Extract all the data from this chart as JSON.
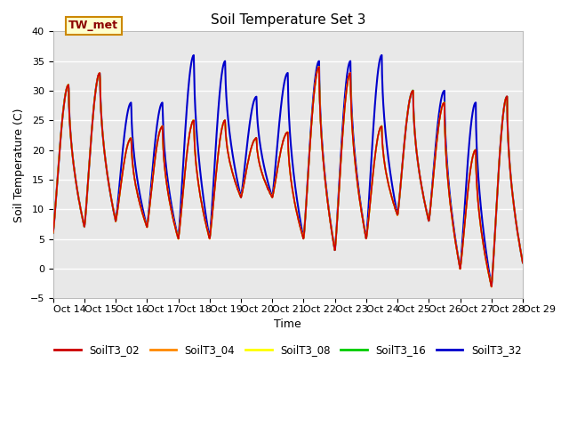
{
  "title": "Soil Temperature Set 3",
  "xlabel": "Time",
  "ylabel": "Soil Temperature (C)",
  "ylim": [
    -5,
    40
  ],
  "series_colors": {
    "SoilT3_02": "#cc0000",
    "SoilT3_04": "#ff8800",
    "SoilT3_08": "#ffff00",
    "SoilT3_16": "#00cc00",
    "SoilT3_32": "#0000cc"
  },
  "series_order": [
    "SoilT3_32",
    "SoilT3_16",
    "SoilT3_08",
    "SoilT3_04",
    "SoilT3_02"
  ],
  "xtick_labels": [
    "Oct 14",
    "Oct 15",
    "Oct 16",
    "Oct 17",
    "Oct 18",
    "Oct 19",
    "Oct 20",
    "Oct 21",
    "Oct 22",
    "Oct 23",
    "Oct 24",
    "Oct 25",
    "Oct 26",
    "Oct 27",
    "Oct 28",
    "Oct 29"
  ],
  "annotation_text": "TW_met",
  "background_color": "#e8e8e8",
  "grid_color": "#ffffff",
  "title_fontsize": 11,
  "label_fontsize": 9,
  "tick_fontsize": 8
}
